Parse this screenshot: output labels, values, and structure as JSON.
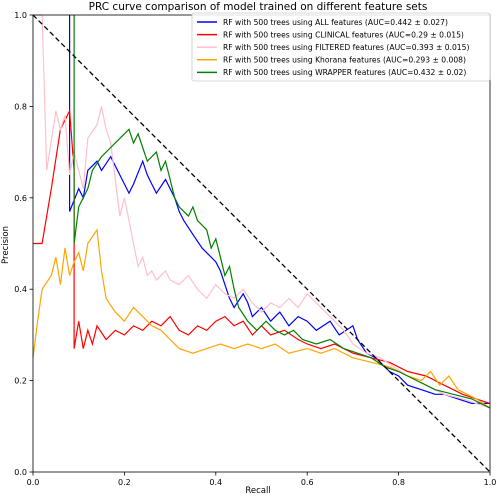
{
  "chart_data": {
    "type": "line",
    "title": "PRC curve comparison of model trained on different feature sets",
    "xlabel": "Recall",
    "ylabel": "Precision",
    "xlim": [
      0.0,
      1.0
    ],
    "ylim": [
      0.0,
      1.0
    ],
    "xticks": [
      "0.0",
      "0.2",
      "0.4",
      "0.6",
      "0.8",
      "1.0"
    ],
    "yticks": [
      "0.0",
      "0.2",
      "0.4",
      "0.6",
      "0.8",
      "1.0"
    ],
    "grid": false,
    "legend_position": "top-right",
    "reference_line": {
      "style": "dashed",
      "color": "#000000",
      "points": [
        [
          0,
          1
        ],
        [
          1,
          0
        ]
      ]
    },
    "series": [
      {
        "name": "RF with 500 trees using ALL features (AUC=0.442 ± 0.027)",
        "color": "#0000ff",
        "points": [
          [
            0.08,
            1.0
          ],
          [
            0.08,
            0.57
          ],
          [
            0.1,
            0.62
          ],
          [
            0.11,
            0.6
          ],
          [
            0.12,
            0.66
          ],
          [
            0.14,
            0.68
          ],
          [
            0.15,
            0.66
          ],
          [
            0.17,
            0.69
          ],
          [
            0.19,
            0.65
          ],
          [
            0.21,
            0.61
          ],
          [
            0.22,
            0.63
          ],
          [
            0.24,
            0.68
          ],
          [
            0.25,
            0.65
          ],
          [
            0.26,
            0.63
          ],
          [
            0.27,
            0.61
          ],
          [
            0.29,
            0.64
          ],
          [
            0.31,
            0.6
          ],
          [
            0.32,
            0.57
          ],
          [
            0.33,
            0.55
          ],
          [
            0.35,
            0.52
          ],
          [
            0.37,
            0.49
          ],
          [
            0.4,
            0.46
          ],
          [
            0.41,
            0.44
          ],
          [
            0.42,
            0.41
          ],
          [
            0.43,
            0.38
          ],
          [
            0.44,
            0.36
          ],
          [
            0.46,
            0.39
          ],
          [
            0.47,
            0.37
          ],
          [
            0.48,
            0.34
          ],
          [
            0.5,
            0.36
          ],
          [
            0.52,
            0.33
          ],
          [
            0.54,
            0.35
          ],
          [
            0.56,
            0.32
          ],
          [
            0.58,
            0.34
          ],
          [
            0.6,
            0.33
          ],
          [
            0.62,
            0.31
          ],
          [
            0.65,
            0.33
          ],
          [
            0.67,
            0.3
          ],
          [
            0.7,
            0.32
          ],
          [
            0.71,
            0.29
          ],
          [
            0.73,
            0.26
          ],
          [
            0.75,
            0.25
          ],
          [
            0.78,
            0.22
          ],
          [
            0.8,
            0.21
          ],
          [
            0.82,
            0.19
          ],
          [
            0.85,
            0.18
          ],
          [
            0.88,
            0.17
          ],
          [
            0.9,
            0.17
          ],
          [
            0.93,
            0.16
          ],
          [
            0.96,
            0.15
          ],
          [
            1.0,
            0.15
          ]
        ]
      },
      {
        "name": "RF with 500 trees using CLINICAL features (AUC=0.29 ± 0.015)",
        "color": "#ff0000",
        "points": [
          [
            0.0,
            0.5
          ],
          [
            0.02,
            0.5
          ],
          [
            0.04,
            0.62
          ],
          [
            0.06,
            0.75
          ],
          [
            0.08,
            0.79
          ],
          [
            0.09,
            0.66
          ],
          [
            0.09,
            0.27
          ],
          [
            0.1,
            0.33
          ],
          [
            0.11,
            0.27
          ],
          [
            0.12,
            0.31
          ],
          [
            0.13,
            0.28
          ],
          [
            0.14,
            0.32
          ],
          [
            0.16,
            0.29
          ],
          [
            0.18,
            0.31
          ],
          [
            0.2,
            0.3
          ],
          [
            0.22,
            0.32
          ],
          [
            0.24,
            0.31
          ],
          [
            0.26,
            0.33
          ],
          [
            0.28,
            0.32
          ],
          [
            0.3,
            0.34
          ],
          [
            0.32,
            0.31
          ],
          [
            0.34,
            0.3
          ],
          [
            0.36,
            0.32
          ],
          [
            0.38,
            0.31
          ],
          [
            0.4,
            0.33
          ],
          [
            0.42,
            0.34
          ],
          [
            0.44,
            0.32
          ],
          [
            0.46,
            0.33
          ],
          [
            0.48,
            0.3
          ],
          [
            0.5,
            0.32
          ],
          [
            0.52,
            0.3
          ],
          [
            0.55,
            0.31
          ],
          [
            0.58,
            0.29
          ],
          [
            0.6,
            0.28
          ],
          [
            0.63,
            0.27
          ],
          [
            0.66,
            0.28
          ],
          [
            0.7,
            0.26
          ],
          [
            0.74,
            0.25
          ],
          [
            0.78,
            0.24
          ],
          [
            0.82,
            0.22
          ],
          [
            0.86,
            0.21
          ],
          [
            0.9,
            0.19
          ],
          [
            0.94,
            0.17
          ],
          [
            0.97,
            0.16
          ],
          [
            1.0,
            0.15
          ]
        ]
      },
      {
        "name": "RF with 500 trees using FILTERED features (AUC=0.393 ± 0.015)",
        "color": "#ffc0cb",
        "points": [
          [
            0.0,
            1.0
          ],
          [
            0.02,
            1.0
          ],
          [
            0.03,
            0.66
          ],
          [
            0.05,
            0.79
          ],
          [
            0.06,
            0.75
          ],
          [
            0.07,
            0.78
          ],
          [
            0.08,
            0.65
          ],
          [
            0.09,
            0.7
          ],
          [
            0.11,
            0.62
          ],
          [
            0.12,
            0.73
          ],
          [
            0.14,
            0.76
          ],
          [
            0.15,
            0.8
          ],
          [
            0.16,
            0.75
          ],
          [
            0.17,
            0.72
          ],
          [
            0.18,
            0.64
          ],
          [
            0.19,
            0.56
          ],
          [
            0.2,
            0.6
          ],
          [
            0.21,
            0.55
          ],
          [
            0.22,
            0.5
          ],
          [
            0.23,
            0.45
          ],
          [
            0.24,
            0.47
          ],
          [
            0.25,
            0.43
          ],
          [
            0.26,
            0.44
          ],
          [
            0.27,
            0.42
          ],
          [
            0.29,
            0.44
          ],
          [
            0.3,
            0.42
          ],
          [
            0.32,
            0.41
          ],
          [
            0.34,
            0.43
          ],
          [
            0.36,
            0.4
          ],
          [
            0.38,
            0.38
          ],
          [
            0.4,
            0.41
          ],
          [
            0.42,
            0.39
          ],
          [
            0.44,
            0.38
          ],
          [
            0.46,
            0.4
          ],
          [
            0.48,
            0.37
          ],
          [
            0.5,
            0.35
          ],
          [
            0.52,
            0.37
          ],
          [
            0.54,
            0.36
          ],
          [
            0.56,
            0.38
          ],
          [
            0.58,
            0.36
          ],
          [
            0.6,
            0.39
          ],
          [
            0.62,
            0.37
          ],
          [
            0.64,
            0.35
          ],
          [
            0.66,
            0.33
          ],
          [
            0.68,
            0.31
          ],
          [
            0.7,
            0.28
          ],
          [
            0.73,
            0.26
          ],
          [
            0.76,
            0.25
          ],
          [
            0.79,
            0.23
          ],
          [
            0.82,
            0.21
          ],
          [
            0.86,
            0.19
          ],
          [
            0.9,
            0.17
          ],
          [
            0.94,
            0.16
          ],
          [
            0.97,
            0.15
          ],
          [
            1.0,
            0.14
          ]
        ]
      },
      {
        "name": "RF with 500 trees using Khorana features (AUC=0.293 ± 0.008)",
        "color": "#ffa500",
        "points": [
          [
            0.0,
            0.25
          ],
          [
            0.01,
            0.33
          ],
          [
            0.02,
            0.4
          ],
          [
            0.04,
            0.43
          ],
          [
            0.05,
            0.47
          ],
          [
            0.06,
            0.41
          ],
          [
            0.07,
            0.49
          ],
          [
            0.08,
            0.43
          ],
          [
            0.09,
            0.46
          ],
          [
            0.1,
            0.48
          ],
          [
            0.11,
            0.44
          ],
          [
            0.12,
            0.5
          ],
          [
            0.14,
            0.53
          ],
          [
            0.15,
            0.44
          ],
          [
            0.16,
            0.38
          ],
          [
            0.18,
            0.35
          ],
          [
            0.2,
            0.33
          ],
          [
            0.22,
            0.36
          ],
          [
            0.24,
            0.34
          ],
          [
            0.26,
            0.32
          ],
          [
            0.28,
            0.31
          ],
          [
            0.3,
            0.29
          ],
          [
            0.32,
            0.27
          ],
          [
            0.35,
            0.26
          ],
          [
            0.38,
            0.27
          ],
          [
            0.41,
            0.28
          ],
          [
            0.44,
            0.27
          ],
          [
            0.47,
            0.28
          ],
          [
            0.5,
            0.27
          ],
          [
            0.53,
            0.28
          ],
          [
            0.56,
            0.26
          ],
          [
            0.6,
            0.27
          ],
          [
            0.63,
            0.26
          ],
          [
            0.66,
            0.27
          ],
          [
            0.7,
            0.25
          ],
          [
            0.74,
            0.24
          ],
          [
            0.78,
            0.23
          ],
          [
            0.82,
            0.21
          ],
          [
            0.85,
            0.2
          ],
          [
            0.87,
            0.22
          ],
          [
            0.89,
            0.19
          ],
          [
            0.91,
            0.21
          ],
          [
            0.93,
            0.18
          ],
          [
            0.95,
            0.17
          ],
          [
            0.97,
            0.16
          ],
          [
            1.0,
            0.14
          ]
        ]
      },
      {
        "name": "RF with 500 trees using WRAPPER features (AUC=0.432 ± 0.02)",
        "color": "#008000",
        "points": [
          [
            0.09,
            1.0
          ],
          [
            0.09,
            0.5
          ],
          [
            0.1,
            0.58
          ],
          [
            0.12,
            0.62
          ],
          [
            0.13,
            0.66
          ],
          [
            0.15,
            0.69
          ],
          [
            0.17,
            0.71
          ],
          [
            0.19,
            0.73
          ],
          [
            0.21,
            0.75
          ],
          [
            0.22,
            0.72
          ],
          [
            0.23,
            0.74
          ],
          [
            0.24,
            0.71
          ],
          [
            0.25,
            0.68
          ],
          [
            0.27,
            0.7
          ],
          [
            0.28,
            0.66
          ],
          [
            0.29,
            0.68
          ],
          [
            0.3,
            0.64
          ],
          [
            0.31,
            0.6
          ],
          [
            0.32,
            0.58
          ],
          [
            0.34,
            0.56
          ],
          [
            0.35,
            0.58
          ],
          [
            0.36,
            0.55
          ],
          [
            0.38,
            0.53
          ],
          [
            0.39,
            0.49
          ],
          [
            0.4,
            0.51
          ],
          [
            0.41,
            0.47
          ],
          [
            0.42,
            0.43
          ],
          [
            0.43,
            0.45
          ],
          [
            0.44,
            0.4
          ],
          [
            0.45,
            0.36
          ],
          [
            0.47,
            0.33
          ],
          [
            0.49,
            0.31
          ],
          [
            0.51,
            0.33
          ],
          [
            0.53,
            0.31
          ],
          [
            0.55,
            0.3
          ],
          [
            0.57,
            0.31
          ],
          [
            0.59,
            0.29
          ],
          [
            0.62,
            0.28
          ],
          [
            0.65,
            0.29
          ],
          [
            0.68,
            0.27
          ],
          [
            0.71,
            0.26
          ],
          [
            0.74,
            0.25
          ],
          [
            0.77,
            0.23
          ],
          [
            0.8,
            0.22
          ],
          [
            0.84,
            0.2
          ],
          [
            0.88,
            0.18
          ],
          [
            0.92,
            0.17
          ],
          [
            0.96,
            0.16
          ],
          [
            1.0,
            0.14
          ]
        ]
      }
    ]
  }
}
